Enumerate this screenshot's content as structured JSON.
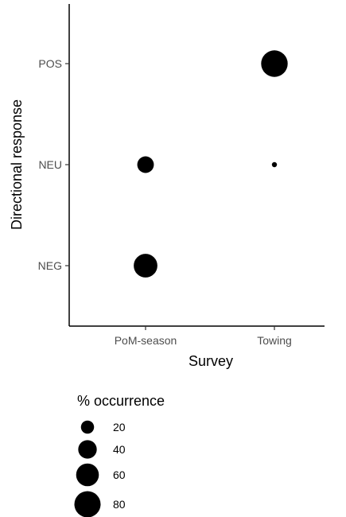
{
  "chart_data": {
    "type": "scatter",
    "xlabel": "Survey",
    "ylabel": "Directional response",
    "x_categories": [
      "PoM-season",
      "Towing"
    ],
    "y_categories": [
      "POS",
      "NEU",
      "NEG"
    ],
    "points": [
      {
        "x": "Towing",
        "y": "POS",
        "size": 82
      },
      {
        "x": "PoM-season",
        "y": "NEU",
        "size": 32
      },
      {
        "x": "Towing",
        "y": "NEU",
        "size": 3
      },
      {
        "x": "PoM-season",
        "y": "NEG",
        "size": 65
      }
    ],
    "size_legend": {
      "title": "% occurrence",
      "breaks": [
        20,
        40,
        60,
        80
      ],
      "labels": [
        "20",
        "40",
        "60",
        "80"
      ],
      "placement": "bottom-left"
    },
    "marker_color": "#000000",
    "axis_color": "#000000",
    "grid": false
  }
}
